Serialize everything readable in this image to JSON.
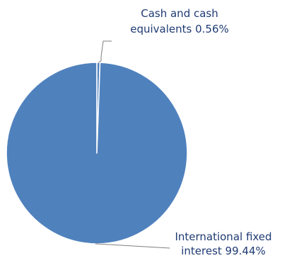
{
  "chart_data": {
    "type": "pie",
    "title": "",
    "slices": [
      {
        "label_lines": [
          "Cash and cash",
          "equivalents 0.56%"
        ],
        "name": "Cash and cash equivalents",
        "value": 0.56,
        "color": "#4f81bd"
      },
      {
        "label_lines": [
          "International fixed",
          "interest 99.44%"
        ],
        "name": "International fixed interest",
        "value": 99.44,
        "color": "#4f81bd"
      }
    ],
    "slice_border_color": "#ffffff",
    "leader_line_color": "#7f7f7f",
    "label_color": "#1f3a73"
  }
}
